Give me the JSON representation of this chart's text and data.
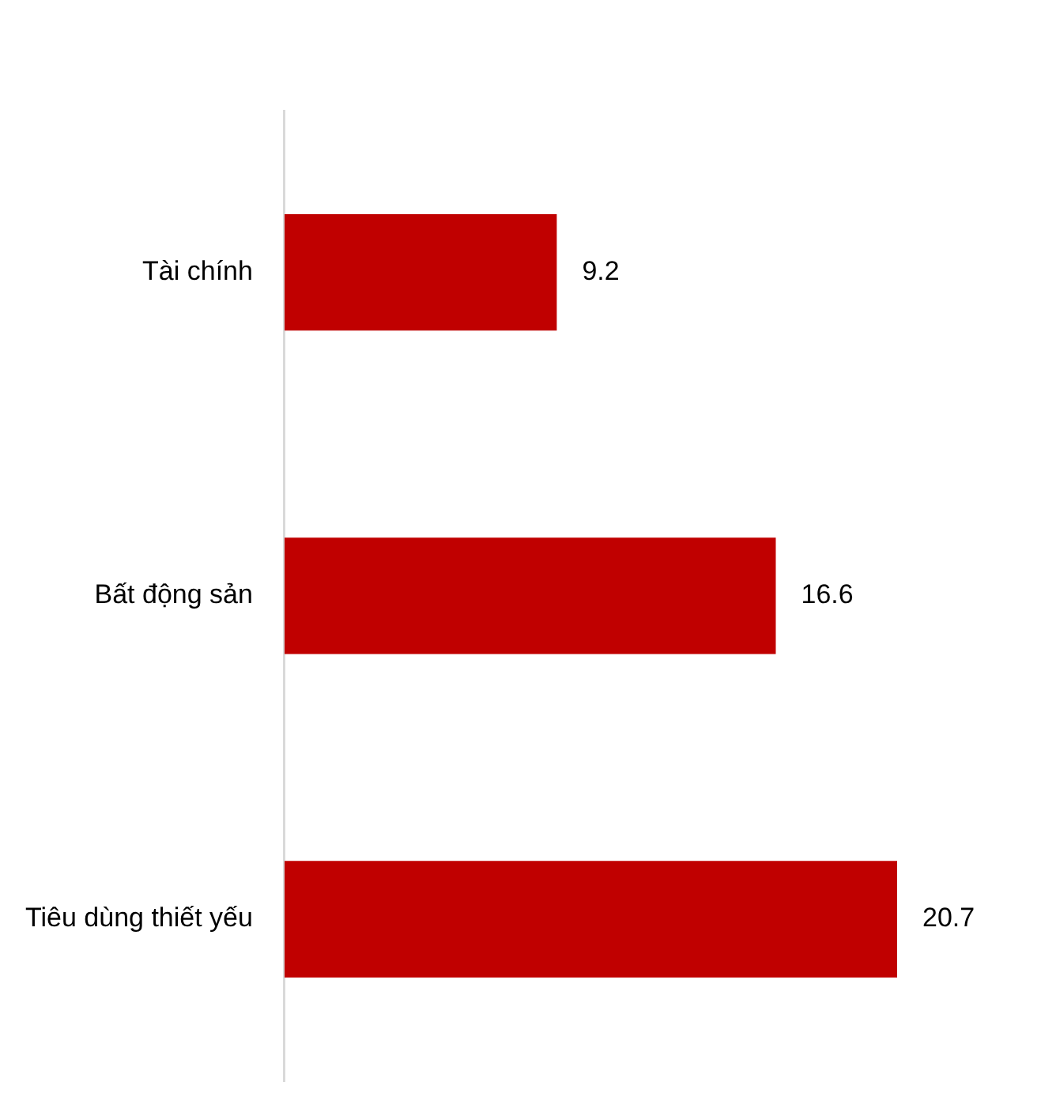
{
  "chart_data": {
    "type": "bar",
    "orientation": "horizontal",
    "categories": [
      "Tài chính",
      "Bất động sản",
      "Tiêu dùng thiết yếu"
    ],
    "values": [
      9.2,
      16.6,
      20.7
    ],
    "color": "#c00000",
    "data_labels": true,
    "tick_labels": "y"
  }
}
